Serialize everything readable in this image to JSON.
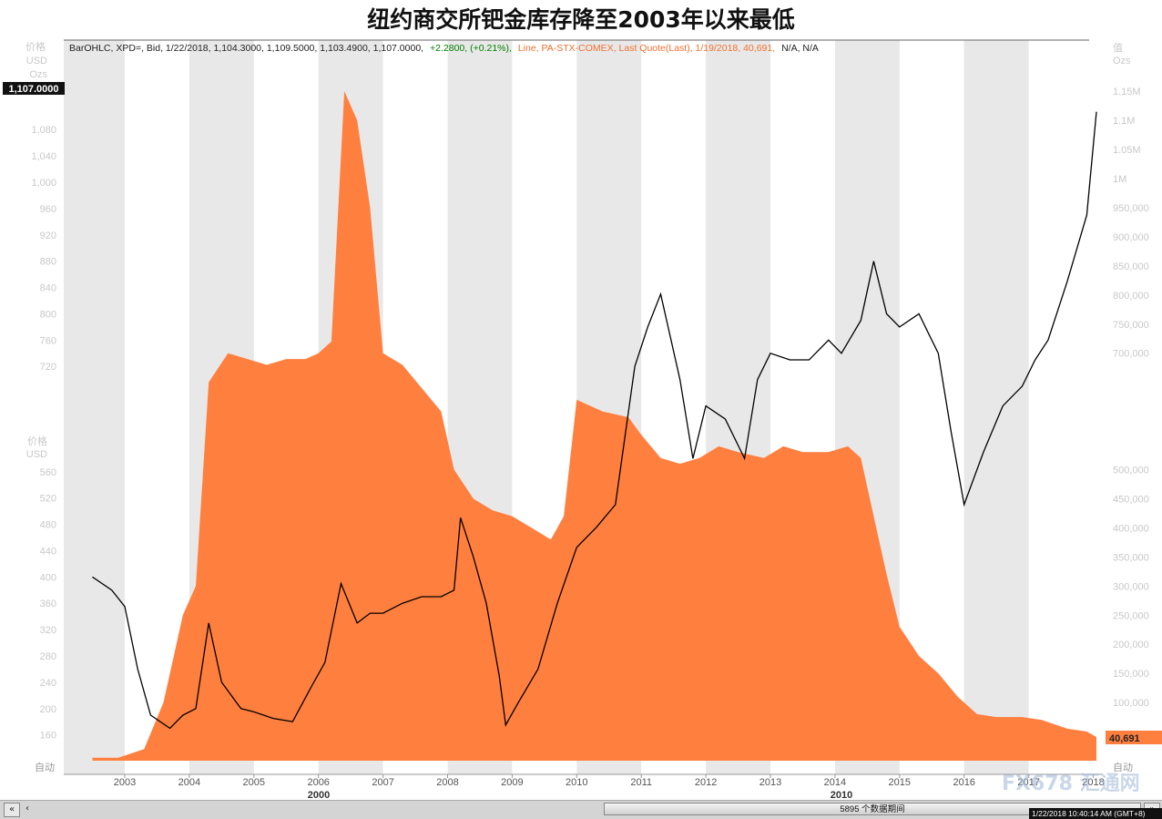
{
  "title": "纽约商交所钯金库存降至2003年以来最低",
  "header": {
    "black_text": "BarOHLC, XPD=, Bid, 1/22/2018, 1,104.3000, 1,109.5000, 1,103.4900, 1,107.0000,",
    "green_text": "+2.2800, (+0.21%),",
    "orange_text": "Line, PA-STX-COMEX, Last Quote(Last), 1/19/2018, 40,691,",
    "black_tail": "N/A, N/A"
  },
  "left_axis": {
    "title1": "价格",
    "title2": "USD",
    "title3": "Ozs",
    "title_mid1": "价格",
    "title_mid2": "USD",
    "auto": "自动"
  },
  "right_axis": {
    "title1": "值",
    "title2": "Ozs",
    "auto": "自动"
  },
  "last_price_label": "1,107.0000",
  "last_value_label": "40,691",
  "decade_labels": [
    "2000",
    "2010"
  ],
  "scroll_text": "5895 个数据期间",
  "timestamp": "1/22/2018 10:40:14 AM  (GMT+8)",
  "watermark": "FX678 汇通网",
  "colors": {
    "inventory": "#ff7f3f",
    "price": "#000000",
    "band": "#e8e8e8",
    "green": "#008000",
    "orange_text": "#f07030"
  },
  "chart_data": {
    "type": "line",
    "title": "纽约商交所钯金库存降至2003年以来最低",
    "x_ticks": [
      "2003",
      "2004",
      "2005",
      "2006",
      "2007",
      "2008",
      "2009",
      "2010",
      "2011",
      "2012",
      "2013",
      "2014",
      "2015",
      "2016",
      "2017",
      "2018"
    ],
    "left_ticks": [
      "1,080",
      "1,040",
      "1,000",
      "960",
      "920",
      "880",
      "840",
      "800",
      "760",
      "720",
      "560",
      "520",
      "480",
      "440",
      "400",
      "360",
      "320",
      "280",
      "240",
      "200",
      "160"
    ],
    "right_ticks": [
      "1.15M",
      "1.1M",
      "1.05M",
      "1M",
      "950,000",
      "900,000",
      "850,000",
      "800,000",
      "750,000",
      "700,000",
      "500,000",
      "450,000",
      "400,000",
      "350,000",
      "300,000",
      "250,000",
      "200,000",
      "150,000",
      "100,000"
    ],
    "series": [
      {
        "name": "XPD=",
        "axis": "left",
        "unit": "USD",
        "x": [
          2002.5,
          2002.8,
          2003.0,
          2003.2,
          2003.4,
          2003.7,
          2003.9,
          2004.1,
          2004.3,
          2004.5,
          2004.8,
          2005.0,
          2005.3,
          2005.6,
          2005.9,
          2006.1,
          2006.35,
          2006.6,
          2006.8,
          2007.0,
          2007.3,
          2007.6,
          2007.9,
          2008.1,
          2008.2,
          2008.4,
          2008.6,
          2008.8,
          2008.9,
          2009.1,
          2009.4,
          2009.7,
          2010.0,
          2010.3,
          2010.6,
          2010.9,
          2011.1,
          2011.3,
          2011.6,
          2011.8,
          2012.0,
          2012.3,
          2012.6,
          2012.8,
          2013.0,
          2013.3,
          2013.6,
          2013.9,
          2014.1,
          2014.4,
          2014.6,
          2014.8,
          2015.0,
          2015.3,
          2015.6,
          2015.8,
          2016.0,
          2016.3,
          2016.6,
          2016.9,
          2017.1,
          2017.3,
          2017.6,
          2017.9,
          2018.05
        ],
        "y": [
          400,
          380,
          355,
          260,
          190,
          170,
          190,
          200,
          330,
          240,
          200,
          195,
          185,
          180,
          235,
          270,
          390,
          330,
          345,
          345,
          360,
          370,
          370,
          380,
          490,
          430,
          360,
          250,
          175,
          210,
          260,
          360,
          445,
          475,
          510,
          720,
          780,
          830,
          700,
          580,
          660,
          640,
          580,
          700,
          740,
          730,
          730,
          760,
          740,
          790,
          880,
          800,
          780,
          800,
          740,
          620,
          510,
          590,
          660,
          690,
          730,
          760,
          850,
          950,
          1107
        ]
      },
      {
        "name": "PA-STX-COMEX",
        "axis": "right",
        "unit": "Ozs",
        "x": [
          2002.5,
          2002.9,
          2003.3,
          2003.6,
          2003.9,
          2004.1,
          2004.3,
          2004.6,
          2004.9,
          2005.2,
          2005.5,
          2005.8,
          2006.0,
          2006.2,
          2006.4,
          2006.6,
          2006.8,
          2007.0,
          2007.3,
          2007.6,
          2007.9,
          2008.1,
          2008.4,
          2008.7,
          2009.0,
          2009.3,
          2009.6,
          2009.8,
          2010.0,
          2010.4,
          2010.8,
          2011.0,
          2011.3,
          2011.6,
          2011.9,
          2012.2,
          2012.5,
          2012.9,
          2013.2,
          2013.5,
          2013.9,
          2014.2,
          2014.4,
          2014.6,
          2014.8,
          2015.0,
          2015.3,
          2015.6,
          2015.9,
          2016.2,
          2016.5,
          2016.9,
          2017.2,
          2017.6,
          2017.9,
          2018.05
        ],
        "y": [
          5000,
          5000,
          20000,
          100000,
          250000,
          300000,
          650000,
          700000,
          690000,
          680000,
          690000,
          690000,
          700000,
          720000,
          1150000,
          1100000,
          950000,
          700000,
          680000,
          640000,
          600000,
          500000,
          450000,
          430000,
          420000,
          400000,
          380000,
          420000,
          620000,
          600000,
          590000,
          560000,
          520000,
          510000,
          520000,
          540000,
          530000,
          520000,
          540000,
          530000,
          530000,
          540000,
          520000,
          420000,
          320000,
          230000,
          180000,
          150000,
          110000,
          80000,
          75000,
          75000,
          70000,
          55000,
          50000,
          40691
        ]
      }
    ]
  }
}
